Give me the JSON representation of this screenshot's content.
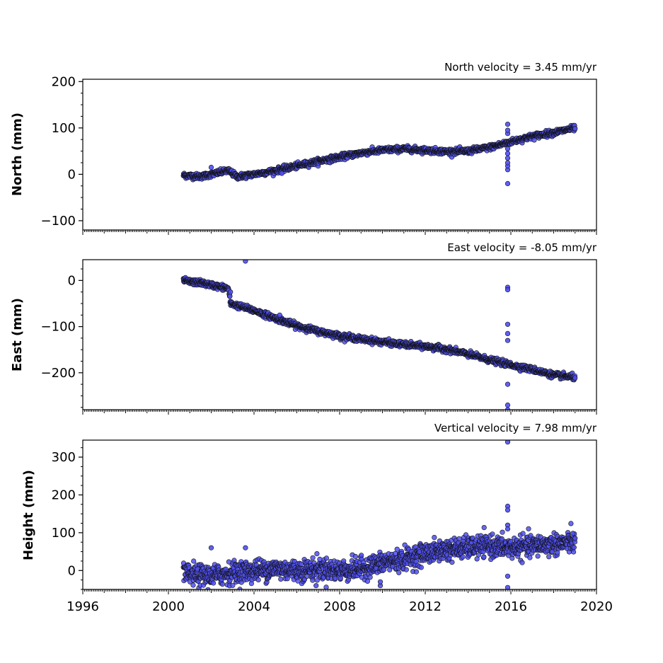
{
  "chart_data": [
    {
      "type": "scatter",
      "title": "North velocity = 3.45 mm/yr",
      "xlabel": "",
      "ylabel": "North (mm)",
      "xlim": [
        1996,
        2020
      ],
      "ylim": [
        -120,
        205
      ],
      "yticks": [
        -100,
        0,
        100,
        200
      ],
      "xticks": [
        1996,
        2000,
        2004,
        2008,
        2012,
        2016,
        2020
      ],
      "show_xtick_labels": false,
      "marker_color": "#4f4ff0",
      "trend": [
        [
          2000.7,
          -2
        ],
        [
          2001.5,
          -5
        ],
        [
          2002.0,
          0
        ],
        [
          2002.8,
          8
        ],
        [
          2003.2,
          -5
        ],
        [
          2004.0,
          0
        ],
        [
          2005.0,
          8
        ],
        [
          2006.0,
          18
        ],
        [
          2007.0,
          28
        ],
        [
          2008.0,
          37
        ],
        [
          2009.0,
          46
        ],
        [
          2010.0,
          52
        ],
        [
          2011.0,
          55
        ],
        [
          2012.0,
          52
        ],
        [
          2013.0,
          49
        ],
        [
          2014.0,
          50
        ],
        [
          2015.0,
          58
        ],
        [
          2016.0,
          70
        ],
        [
          2017.0,
          82
        ],
        [
          2018.0,
          90
        ],
        [
          2019.0,
          100
        ]
      ],
      "spread": 3,
      "outliers": [
        [
          2015.85,
          -20
        ],
        [
          2015.85,
          10
        ],
        [
          2015.85,
          18
        ],
        [
          2015.85,
          25
        ],
        [
          2015.85,
          35
        ],
        [
          2015.85,
          45
        ],
        [
          2015.85,
          55
        ],
        [
          2015.85,
          88
        ],
        [
          2015.85,
          95
        ],
        [
          2015.85,
          108
        ],
        [
          2002.0,
          15
        ],
        [
          2005.3,
          2
        ]
      ]
    },
    {
      "type": "scatter",
      "title": "East velocity = -8.05 mm/yr",
      "xlabel": "",
      "ylabel": "East (mm)",
      "xlim": [
        1996,
        2020
      ],
      "ylim": [
        -280,
        45
      ],
      "yticks": [
        -200,
        -100,
        0
      ],
      "xticks": [
        1996,
        2000,
        2004,
        2008,
        2012,
        2016,
        2020
      ],
      "show_xtick_labels": false,
      "marker_color": "#4f4ff0",
      "trend": [
        [
          2000.7,
          0
        ],
        [
          2001.0,
          -3
        ],
        [
          2001.5,
          -5
        ],
        [
          2002.0,
          -10
        ],
        [
          2002.8,
          -17
        ],
        [
          2002.9,
          -50
        ],
        [
          2003.5,
          -58
        ],
        [
          2004.0,
          -65
        ],
        [
          2005.0,
          -82
        ],
        [
          2006.0,
          -98
        ],
        [
          2007.0,
          -110
        ],
        [
          2008.0,
          -120
        ],
        [
          2009.0,
          -127
        ],
        [
          2010.0,
          -133
        ],
        [
          2011.0,
          -139
        ],
        [
          2012.0,
          -143
        ],
        [
          2013.0,
          -149
        ],
        [
          2014.0,
          -160
        ],
        [
          2015.0,
          -172
        ],
        [
          2016.0,
          -183
        ],
        [
          2017.0,
          -193
        ],
        [
          2018.0,
          -205
        ],
        [
          2019.0,
          -210
        ]
      ],
      "spread": 3,
      "outliers": [
        [
          2003.6,
          42
        ],
        [
          2015.85,
          -15
        ],
        [
          2015.85,
          -20
        ],
        [
          2015.85,
          -95
        ],
        [
          2015.85,
          -115
        ],
        [
          2015.85,
          -130
        ],
        [
          2015.85,
          -225
        ],
        [
          2015.85,
          -270
        ],
        [
          2015.85,
          -280
        ],
        [
          2002.9,
          -25
        ],
        [
          2005.2,
          -75
        ]
      ]
    },
    {
      "type": "scatter",
      "title": "Vertical velocity = 7.98 mm/yr",
      "xlabel": "",
      "ylabel": "Height (mm)",
      "xlim": [
        1996,
        2020
      ],
      "ylim": [
        -50,
        345
      ],
      "yticks": [
        0,
        100,
        200,
        300
      ],
      "xticks": [
        1996,
        2000,
        2004,
        2008,
        2012,
        2016,
        2020
      ],
      "show_xtick_labels": true,
      "marker_color": "#4f4ff0",
      "trend": [
        [
          2000.7,
          -10
        ],
        [
          2002.0,
          -15
        ],
        [
          2003.0,
          -5
        ],
        [
          2004.0,
          0
        ],
        [
          2005.0,
          5
        ],
        [
          2006.0,
          0
        ],
        [
          2007.0,
          5
        ],
        [
          2008.0,
          0
        ],
        [
          2009.0,
          5
        ],
        [
          2010.0,
          20
        ],
        [
          2011.0,
          30
        ],
        [
          2012.0,
          45
        ],
        [
          2013.0,
          55
        ],
        [
          2014.0,
          60
        ],
        [
          2015.0,
          65
        ],
        [
          2016.0,
          60
        ],
        [
          2017.0,
          65
        ],
        [
          2018.0,
          70
        ],
        [
          2019.0,
          75
        ]
      ],
      "spread": 14,
      "outliers": [
        [
          2015.85,
          340
        ],
        [
          2015.85,
          170
        ],
        [
          2015.85,
          160
        ],
        [
          2015.85,
          120
        ],
        [
          2015.85,
          110
        ],
        [
          2015.85,
          -15
        ],
        [
          2015.85,
          -45
        ],
        [
          2003.6,
          60
        ],
        [
          2002.0,
          60
        ],
        [
          2006.9,
          -40
        ],
        [
          2009.9,
          -40
        ],
        [
          2009.9,
          -30
        ],
        [
          2018.9,
          98
        ]
      ]
    }
  ]
}
